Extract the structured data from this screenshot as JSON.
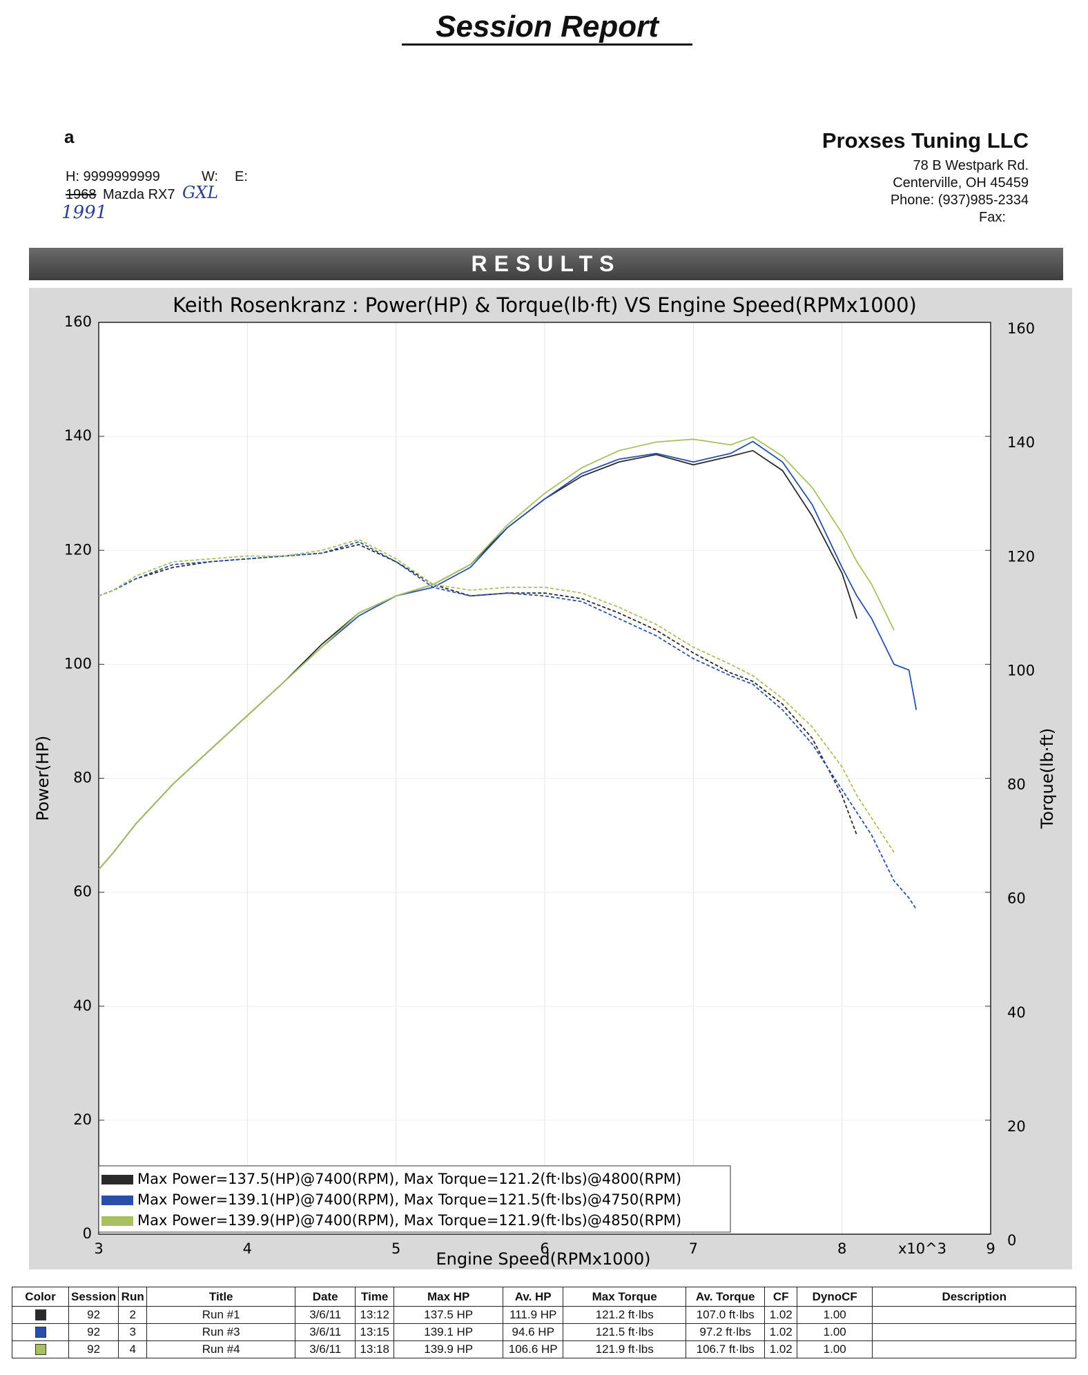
{
  "header": {
    "title": "Session Report",
    "customer": "a",
    "phone": "H: 9999999999",
    "work": "W:",
    "email": "E:",
    "year_struck": "1968",
    "vehicle": "Mazda RX7",
    "handwritten_model": "GXL",
    "handwritten_year": "1991",
    "company": "Proxses Tuning LLC",
    "address": "78 B Westpark Rd.",
    "city": "Centerville, OH 45459",
    "company_phone": "Phone: (937)985-2334",
    "fax": "Fax:"
  },
  "results_label": "RESULTS",
  "chart_data": {
    "type": "line",
    "title": "Keith Rosenkranz : Power(HP) & Torque(lb·ft) VS Engine Speed(RPMx1000)",
    "x_label": "Engine Speed(RPMx1000)",
    "x_multiplier": "x10^3",
    "y_label": "Power(HP)",
    "y2_label": "Torque(lb·ft)",
    "xlim": [
      3,
      9
    ],
    "xticks": [
      3,
      4,
      5,
      6,
      7,
      8,
      9
    ],
    "ylim": [
      0,
      160
    ],
    "yticks": [
      0,
      20,
      40,
      60,
      80,
      100,
      120,
      140,
      160
    ],
    "y2lim": [
      0,
      160
    ],
    "y2ticks": [
      0,
      20,
      40,
      60,
      80,
      100,
      120,
      140,
      160
    ],
    "grid": true,
    "x": [
      3,
      3.1,
      3.25,
      3.5,
      3.75,
      4,
      4.25,
      4.5,
      4.75,
      5,
      5.25,
      5.5,
      5.75,
      6,
      6.25,
      6.5,
      6.75,
      7,
      7.25,
      7.4,
      7.6,
      7.8,
      8,
      8.1,
      8.2,
      8.35,
      8.45,
      8.5
    ],
    "series": [
      {
        "color": "#2a2a2a",
        "style": "solid",
        "values": [
          64,
          67,
          72,
          79,
          85,
          91,
          97,
          103.5,
          109,
          112,
          114,
          117.5,
          124,
          129,
          133,
          135.5,
          136.8,
          135,
          136.5,
          137.5,
          134,
          126,
          116,
          108,
          null,
          null,
          null,
          null
        ]
      },
      {
        "color": "#2b4fa8",
        "style": "solid",
        "values": [
          64,
          67,
          72,
          79,
          85,
          91,
          97,
          103,
          108.5,
          112,
          113.5,
          117,
          124,
          129,
          133.5,
          136,
          137,
          135.5,
          137,
          139.1,
          135.5,
          128,
          117,
          112,
          108,
          100,
          99,
          92
        ]
      },
      {
        "color": "#a8c060",
        "style": "solid",
        "values": [
          64,
          67,
          72,
          79,
          85,
          91,
          97,
          103,
          109,
          112,
          114,
          117.5,
          124.5,
          130,
          134.5,
          137.5,
          139,
          139.5,
          138.5,
          139.9,
          136.5,
          131,
          123,
          118,
          114,
          106,
          null,
          null
        ]
      },
      {
        "color": "#2a2a2a",
        "style": "dashed",
        "axis": "y2",
        "values": [
          112,
          113,
          115,
          117,
          118,
          118.5,
          119,
          119.5,
          121,
          118,
          114,
          112,
          112.5,
          112.5,
          111.5,
          109,
          106,
          102,
          98.5,
          97,
          93,
          87,
          77,
          70,
          null,
          null,
          null,
          null
        ]
      },
      {
        "color": "#2b4fa8",
        "style": "dashed",
        "axis": "y2",
        "values": [
          112,
          113,
          115,
          117.5,
          118,
          118.5,
          119,
          119.5,
          121.5,
          118,
          113.5,
          112,
          112.5,
          112,
          111,
          108,
          105,
          101,
          98,
          96.5,
          92,
          86,
          78,
          74,
          70,
          62,
          59,
          57
        ]
      },
      {
        "color": "#a8c060",
        "style": "dashed",
        "axis": "y2",
        "values": [
          112,
          113,
          115.5,
          118,
          118.5,
          119,
          119,
          120,
          121.9,
          118.5,
          114,
          113,
          113.5,
          113.5,
          112.5,
          110,
          107,
          103,
          100,
          98,
          94,
          89,
          82,
          77,
          73,
          67,
          null,
          null
        ]
      }
    ],
    "legend": [
      {
        "color": "#2a2a2a",
        "label": "Max Power=137.5(HP)@7400(RPM), Max Torque=121.2(ft·lbs)@4800(RPM)"
      },
      {
        "color": "#2b4fa8",
        "label": "Max Power=139.1(HP)@7400(RPM), Max Torque=121.5(ft·lbs)@4750(RPM)"
      },
      {
        "color": "#a8c060",
        "label": "Max Power=139.9(HP)@7400(RPM), Max Torque=121.9(ft·lbs)@4850(RPM)"
      }
    ]
  },
  "table": {
    "header": [
      "Color",
      "Session",
      "Run",
      "Title",
      "Date",
      "Time",
      "Max HP",
      "Av. HP",
      "Max Torque",
      "Av. Torque",
      "CF",
      "DynoCF",
      "Description"
    ],
    "rows": [
      {
        "color": "#2a2a2a",
        "cells": [
          "92",
          "2",
          "Run #1",
          "3/6/11",
          "13:12",
          "137.5 HP",
          "111.9 HP",
          "121.2 ft·lbs",
          "107.0 ft·lbs",
          "1.02",
          "1.00"
        ]
      },
      {
        "color": "#2b4fa8",
        "cells": [
          "92",
          "3",
          "Run #3",
          "3/6/11",
          "13:15",
          "139.1 HP",
          "94.6 HP",
          "121.5 ft·lbs",
          "97.2 ft·lbs",
          "1.02",
          "1.00"
        ]
      },
      {
        "color": "#a8c060",
        "cells": [
          "92",
          "4",
          "Run #4",
          "3/6/11",
          "13:18",
          "139.9 HP",
          "106.6 HP",
          "121.9 ft·lbs",
          "106.7 ft·lbs",
          "1.02",
          "1.00"
        ]
      }
    ]
  }
}
